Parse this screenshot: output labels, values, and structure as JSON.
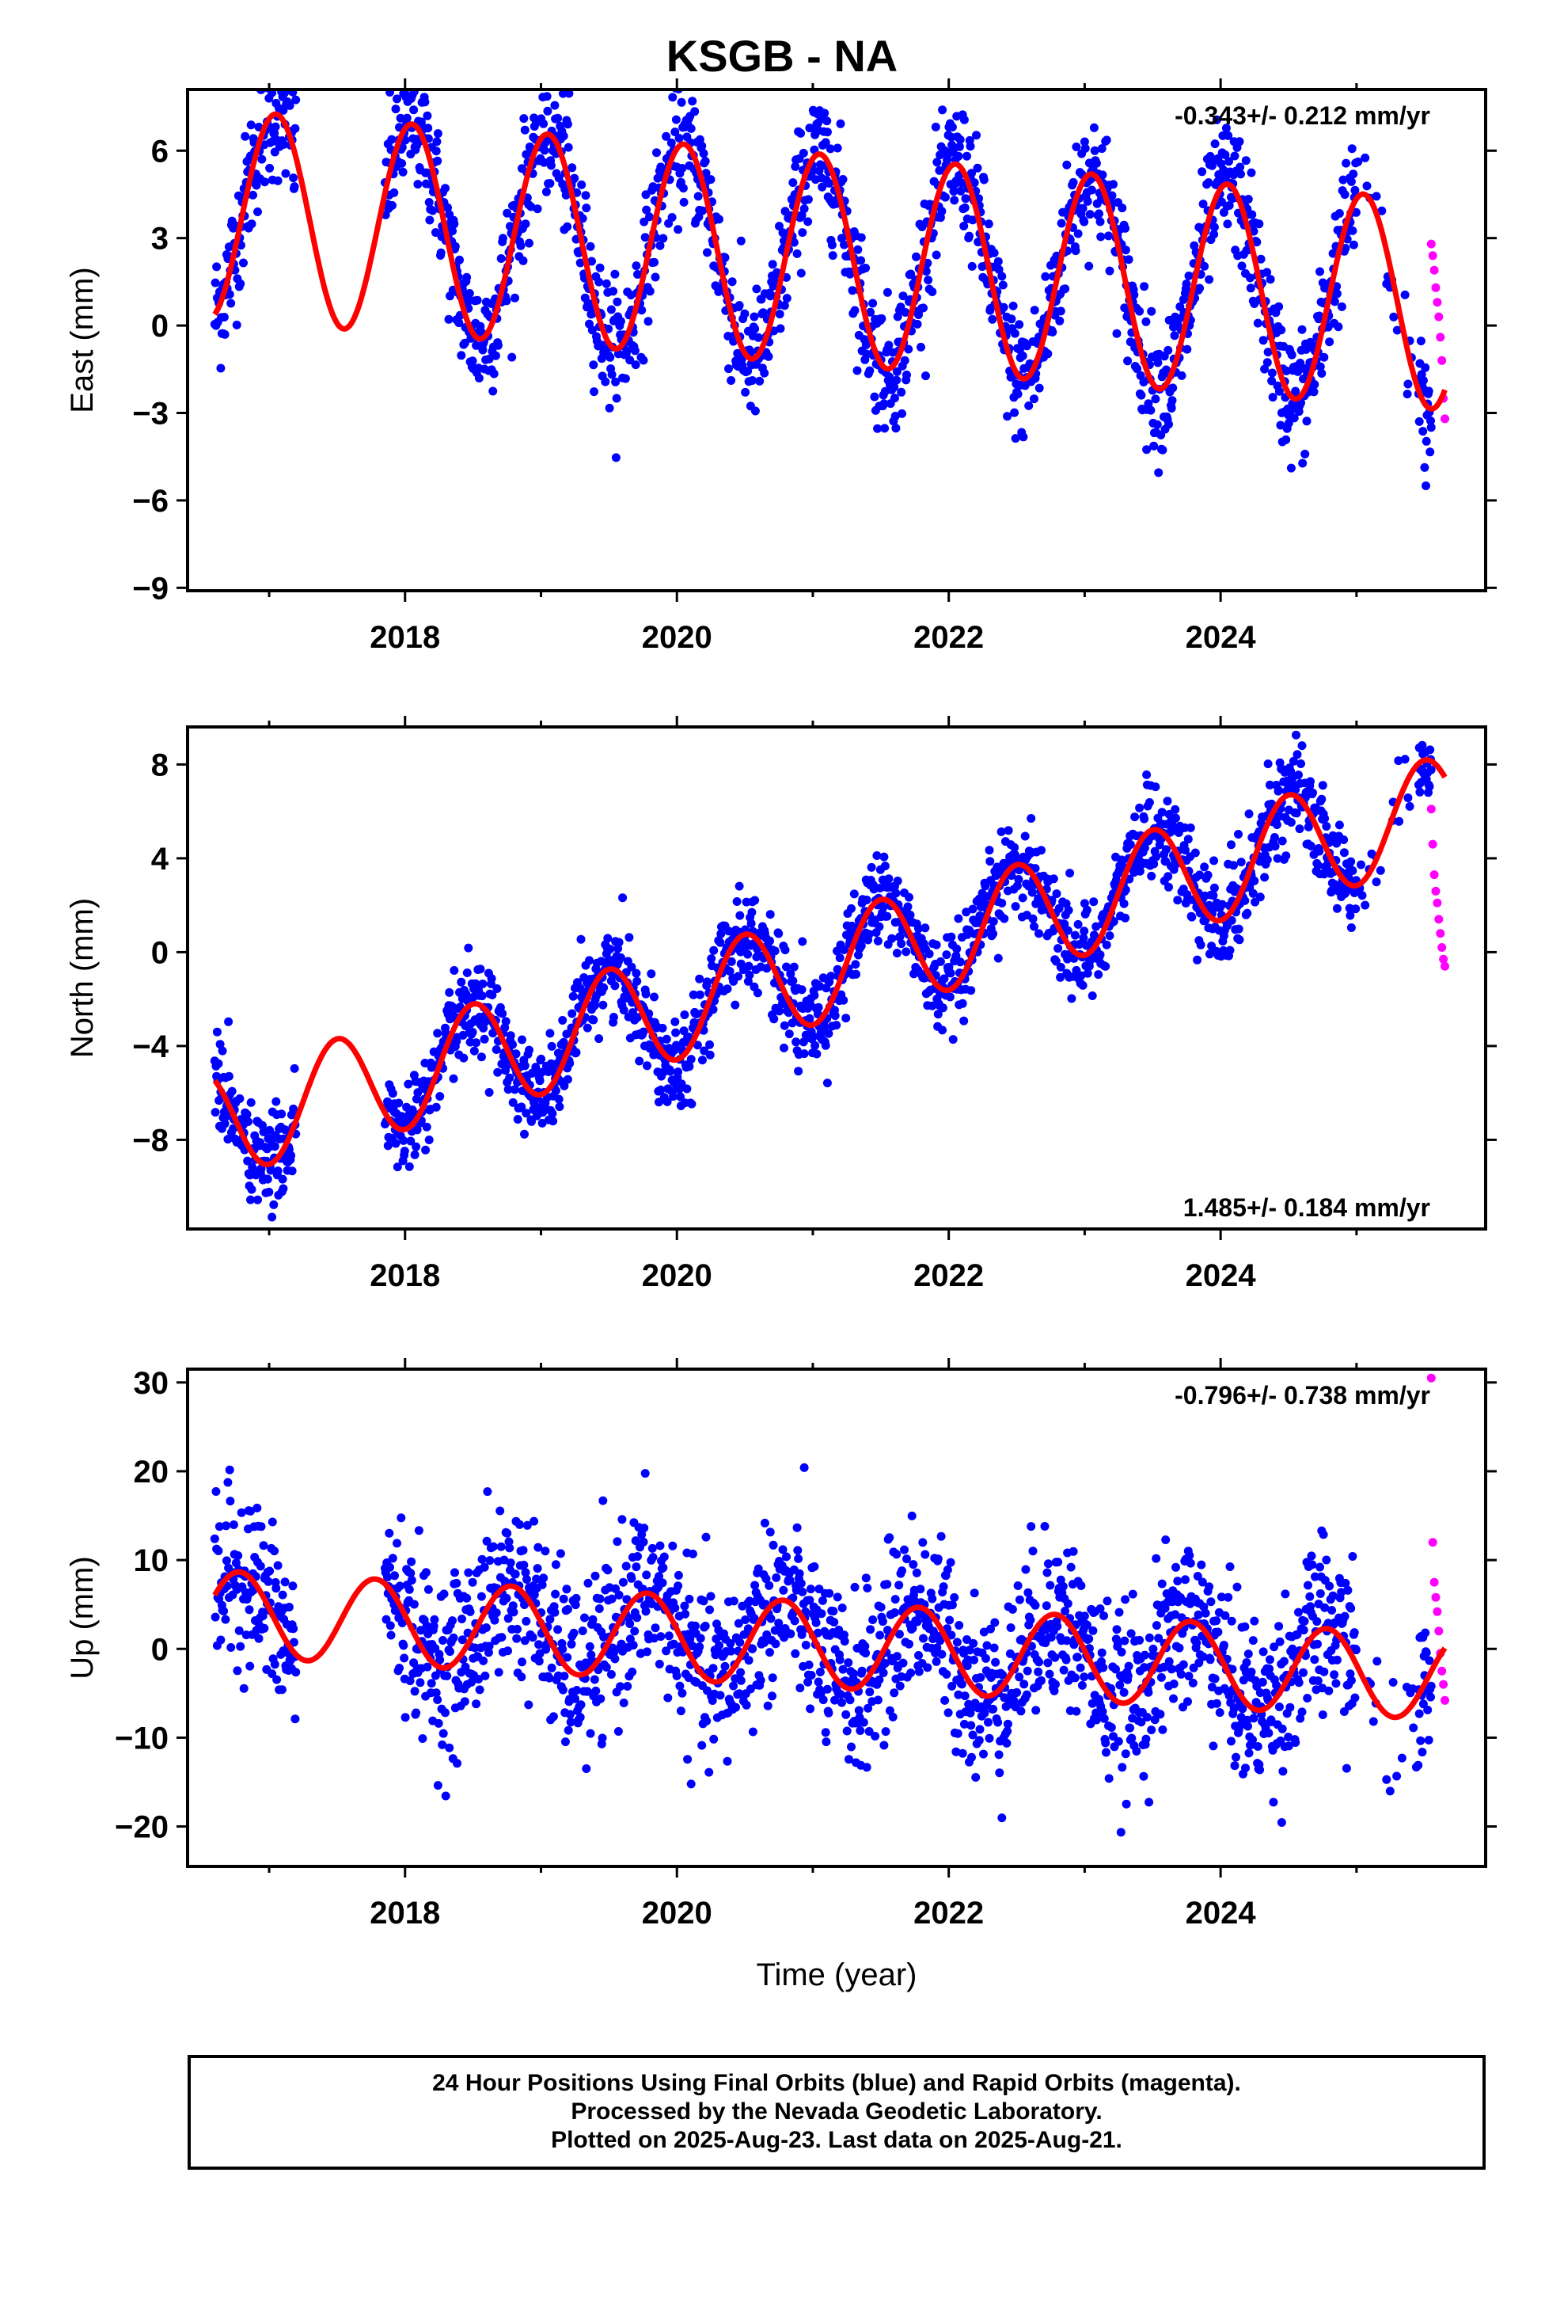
{
  "title": "KSGB - NA",
  "footer": {
    "line1": "24 Hour Positions Using Final Orbits (blue) and Rapid Orbits (magenta).",
    "line2": "Processed by the Nevada Geodetic Laboratory.",
    "line3": "Plotted on 2025-Aug-23. Last data on 2025-Aug-21."
  },
  "colors": {
    "final": "#0000ff",
    "rapid": "#ff00ff",
    "model": "#ff0000"
  },
  "chart_data": [
    {
      "type": "scatter",
      "ylabel": "East (mm)",
      "xlabel": "",
      "rate": "-0.343+/- 0.212 mm/yr",
      "rate_position": "top-right",
      "xlim": [
        2016.4,
        2025.95
      ],
      "ylim": [
        -9.1,
        8.1
      ],
      "xticks": [
        "2018",
        "2020",
        "2022",
        "2024"
      ],
      "yticks": [
        "6",
        "3",
        "0",
        "-3",
        "-6",
        "-9"
      ],
      "model": {
        "mean": 2.3,
        "trend": -0.343,
        "amplitude": 3.6,
        "peak_phase": 0.05,
        "ref_year": 2021.0
      },
      "data_span": [
        2016.6,
        2025.55
      ],
      "gap": [
        2017.2,
        2017.85
      ],
      "rapid": {
        "x_range": [
          2025.55,
          2025.65
        ],
        "values": [
          2.8,
          2.4,
          1.9,
          1.3,
          0.8,
          0.3,
          -0.4,
          -1.2,
          -2.5,
          -3.2
        ]
      },
      "noise_sd": 1.1
    },
    {
      "type": "scatter",
      "ylabel": "North (mm)",
      "xlabel": "",
      "rate": "1.485+/- 0.184 mm/yr",
      "rate_position": "bottom-right",
      "xlim": [
        2016.4,
        2025.95
      ],
      "ylim": [
        -11.8,
        9.6
      ],
      "xticks": [
        "2018",
        "2020",
        "2022",
        "2024"
      ],
      "yticks": [
        "8",
        "4",
        "0",
        "-4",
        "-8"
      ],
      "model": {
        "mean": -0.8,
        "trend": 1.485,
        "amplitude": 2.3,
        "peak_phase": 0.5,
        "ref_year": 2021.0
      },
      "data_span": [
        2016.6,
        2025.55
      ],
      "gap": [
        2017.2,
        2017.85
      ],
      "rapid": {
        "x_range": [
          2025.55,
          2025.65
        ],
        "values": [
          6.1,
          4.6,
          3.3,
          2.6,
          2.1,
          1.4,
          0.8,
          0.2,
          -0.3,
          -0.6
        ]
      },
      "noise_sd": 1.0
    },
    {
      "type": "scatter",
      "ylabel": "Up (mm)",
      "xlabel": "Time (year)",
      "rate": "-0.796+/- 0.738 mm/yr",
      "rate_position": "top-right",
      "xlim": [
        2016.4,
        2025.95
      ],
      "ylim": [
        -24.5,
        31.5
      ],
      "xticks": [
        "2018",
        "2020",
        "2022",
        "2024"
      ],
      "yticks": [
        "30",
        "20",
        "10",
        "0",
        "-10",
        "-20"
      ],
      "model": {
        "mean": 0.5,
        "trend": -0.796,
        "amplitude": 4.8,
        "peak_phase": 0.78,
        "ref_year": 2021.0
      },
      "data_span": [
        2016.6,
        2025.55
      ],
      "gap": [
        2017.2,
        2017.85
      ],
      "rapid": {
        "x_range": [
          2025.55,
          2025.65
        ],
        "values": [
          30.5,
          12.0,
          7.5,
          5.8,
          4.2,
          2.0,
          -0.5,
          -2.5,
          -4.0,
          -5.8
        ]
      },
      "noise_sd": 4.8
    }
  ]
}
